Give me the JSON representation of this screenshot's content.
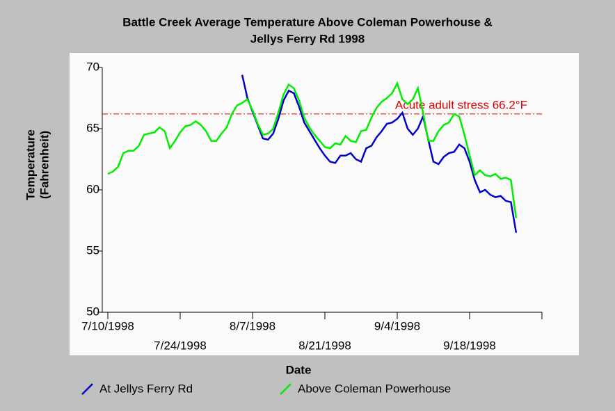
{
  "chart_data": {
    "type": "line",
    "title": [
      "Battle Creek Average Temperature Above Coleman Powerhouse &",
      "Jellys Ferry Rd 1998"
    ],
    "xlabel": "Date",
    "ylabel": [
      "Temperature",
      "(Fahrenheit)"
    ],
    "x": [
      "7/10/1998",
      "7/11/1998",
      "7/12/1998",
      "7/13/1998",
      "7/14/1998",
      "7/15/1998",
      "7/16/1998",
      "7/17/1998",
      "7/18/1998",
      "7/19/1998",
      "7/20/1998",
      "7/21/1998",
      "7/22/1998",
      "7/23/1998",
      "7/24/1998",
      "7/25/1998",
      "7/26/1998",
      "7/27/1998",
      "7/28/1998",
      "7/29/1998",
      "7/30/1998",
      "7/31/1998",
      "8/1/1998",
      "8/2/1998",
      "8/3/1998",
      "8/4/1998",
      "8/5/1998",
      "8/6/1998",
      "8/7/1998",
      "8/8/1998",
      "8/9/1998",
      "8/10/1998",
      "8/11/1998",
      "8/12/1998",
      "8/13/1998",
      "8/14/1998",
      "8/15/1998",
      "8/16/1998",
      "8/17/1998",
      "8/18/1998",
      "8/19/1998",
      "8/20/1998",
      "8/21/1998",
      "8/22/1998",
      "8/23/1998",
      "8/24/1998",
      "8/25/1998",
      "8/26/1998",
      "8/27/1998",
      "8/28/1998",
      "8/29/1998",
      "8/30/1998",
      "8/31/1998",
      "9/1/1998",
      "9/2/1998",
      "9/3/1998",
      "9/4/1998",
      "9/5/1998",
      "9/6/1998",
      "9/7/1998",
      "9/8/1998",
      "9/9/1998",
      "9/10/1998",
      "9/11/1998",
      "9/12/1998",
      "9/13/1998",
      "9/14/1998",
      "9/15/1998",
      "9/16/1998",
      "9/17/1998",
      "9/18/1998",
      "9/19/1998",
      "9/20/1998",
      "9/21/1998",
      "9/22/1998",
      "9/23/1998",
      "9/24/1998",
      "9/25/1998",
      "9/26/1998",
      "9/27/1998"
    ],
    "series": [
      {
        "name": "At Jellys Ferry Rd",
        "color": "#0000cc",
        "values": [
          null,
          null,
          null,
          null,
          null,
          null,
          null,
          null,
          null,
          null,
          null,
          null,
          null,
          null,
          null,
          null,
          null,
          null,
          null,
          null,
          null,
          null,
          null,
          null,
          null,
          null,
          69.4,
          67.5,
          66.4,
          65.3,
          64.2,
          64.1,
          64.6,
          65.8,
          67.3,
          68.1,
          67.9,
          66.8,
          65.5,
          64.8,
          64.1,
          63.4,
          62.8,
          62.3,
          62.2,
          62.8,
          62.8,
          63.0,
          62.5,
          62.3,
          63.4,
          63.6,
          64.3,
          64.8,
          65.4,
          65.5,
          65.8,
          66.3,
          65.0,
          64.5,
          65.0,
          66.0,
          64.1,
          62.3,
          62.1,
          62.7,
          63.0,
          63.1,
          63.7,
          63.4,
          62.3,
          60.8,
          59.8,
          60.0,
          59.6,
          59.4,
          59.5,
          59.1,
          59.0,
          56.5
        ]
      },
      {
        "name": "Above Coleman Powerhouse",
        "color": "#00ee00",
        "values": [
          61.3,
          61.5,
          61.9,
          63.0,
          63.2,
          63.2,
          63.6,
          64.5,
          64.6,
          64.7,
          65.1,
          64.8,
          63.4,
          64.0,
          64.7,
          65.2,
          65.3,
          65.6,
          65.3,
          64.8,
          64.0,
          64.0,
          64.6,
          65.1,
          66.2,
          66.9,
          67.1,
          67.4,
          66.5,
          65.4,
          64.5,
          64.6,
          65.0,
          66.3,
          67.8,
          68.6,
          68.3,
          67.3,
          65.9,
          65.1,
          64.5,
          64.0,
          63.5,
          63.4,
          63.8,
          63.7,
          64.4,
          64.0,
          63.9,
          64.8,
          64.9,
          65.9,
          66.7,
          67.2,
          67.5,
          67.9,
          68.7,
          67.4,
          67.0,
          67.4,
          68.3,
          66.3,
          64.0,
          64.0,
          64.8,
          65.3,
          65.5,
          66.2,
          66.0,
          64.5,
          62.8,
          61.2,
          61.6,
          61.2,
          61.1,
          61.3,
          60.9,
          61.0,
          60.8,
          57.7
        ]
      }
    ],
    "xlim": [
      "7/10/1998",
      "10/2/1998"
    ],
    "xticks": [
      "7/10/1998",
      "7/24/1998",
      "8/7/1998",
      "8/21/1998",
      "9/4/1998",
      "9/18/1998"
    ],
    "ylim": [
      50,
      70
    ],
    "yticks": [
      50,
      55,
      60,
      65,
      70
    ],
    "reference_line": {
      "value": 66.2,
      "label": "Acute adult stress 66.2°F",
      "color": "#dd0000"
    }
  }
}
